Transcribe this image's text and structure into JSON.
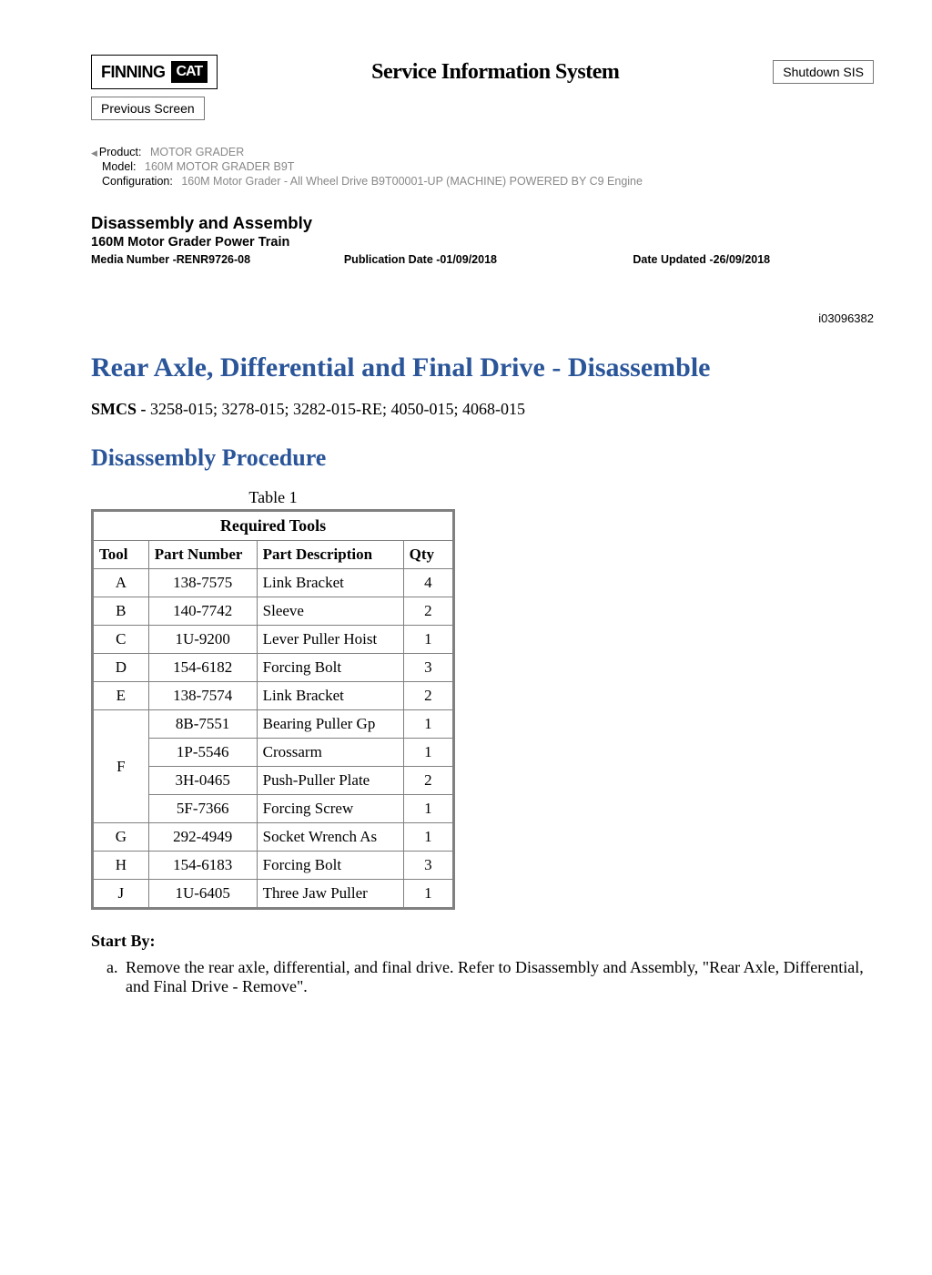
{
  "header": {
    "logo_finning": "FINNING",
    "logo_cat": "CAT",
    "sis_title": "Service Information System",
    "shutdown_btn": "Shutdown SIS",
    "prev_btn": "Previous Screen"
  },
  "meta": {
    "product_label": "Product:",
    "product": "MOTOR GRADER",
    "model_label": "Model:",
    "model": "160M MOTOR GRADER B9T",
    "config_label": "Configuration:",
    "config": "160M Motor Grader - All Wheel Drive B9T00001-UP (MACHINE) POWERED BY C9 Engine"
  },
  "doc": {
    "section": "Disassembly and Assembly",
    "subtitle": "160M Motor Grader Power Train",
    "media_label": "Media Number -",
    "media_number": "RENR9726-08",
    "pub_label": "Publication Date -",
    "pub_date": "01/09/2018",
    "upd_label": "Date Updated -",
    "upd_date": "26/09/2018",
    "doc_id": "i03096382"
  },
  "article": {
    "title": "Rear Axle, Differential and Final Drive - Disassemble",
    "smcs_label": "SMCS - ",
    "smcs": "3258-015; 3278-015; 3282-015-RE; 4050-015; 4068-015",
    "proc_title": "Disassembly Procedure"
  },
  "table": {
    "caption": "Table 1",
    "req_header": "Required Tools",
    "col_tool": "Tool",
    "col_pn": "Part Number",
    "col_desc": "Part Description",
    "col_qty": "Qty",
    "row_colors": {
      "header_border": "#808080",
      "cell_border": "#808080"
    },
    "rows": [
      {
        "tool": "A",
        "pn": "138-7575",
        "desc": "Link Bracket",
        "qty": "4",
        "rowspan": 1
      },
      {
        "tool": "B",
        "pn": "140-7742",
        "desc": "Sleeve",
        "qty": "2",
        "rowspan": 1
      },
      {
        "tool": "C",
        "pn": "1U-9200",
        "desc": "Lever Puller Hoist",
        "qty": "1",
        "rowspan": 1
      },
      {
        "tool": "D",
        "pn": "154-6182",
        "desc": "Forcing Bolt",
        "qty": "3",
        "rowspan": 1
      },
      {
        "tool": "E",
        "pn": "138-7574",
        "desc": "Link Bracket",
        "qty": "2",
        "rowspan": 1
      },
      {
        "tool": "F",
        "pn": "8B-7551",
        "desc": "Bearing Puller Gp",
        "qty": "1",
        "rowspan": 4
      },
      {
        "tool": "",
        "pn": "1P-5546",
        "desc": "Crossarm",
        "qty": "1",
        "rowspan": 0
      },
      {
        "tool": "",
        "pn": "3H-0465",
        "desc": "Push-Puller Plate",
        "qty": "2",
        "rowspan": 0
      },
      {
        "tool": "",
        "pn": "5F-7366",
        "desc": "Forcing Screw",
        "qty": "1",
        "rowspan": 0
      },
      {
        "tool": "G",
        "pn": "292-4949",
        "desc": "Socket Wrench As",
        "qty": "1",
        "rowspan": 1
      },
      {
        "tool": "H",
        "pn": "154-6183",
        "desc": "Forcing Bolt",
        "qty": "3",
        "rowspan": 1
      },
      {
        "tool": "J",
        "pn": "1U-6405",
        "desc": "Three Jaw Puller",
        "qty": "1",
        "rowspan": 1
      }
    ]
  },
  "start_by": {
    "label": "Start By:",
    "step_a": "Remove the rear axle, differential, and final drive. Refer to Disassembly and Assembly, \"Rear Axle, Differential, and Final Drive - Remove\"."
  },
  "colors": {
    "link_blue": "#2a5599",
    "grey_text": "#888888",
    "border_grey": "#808080"
  }
}
